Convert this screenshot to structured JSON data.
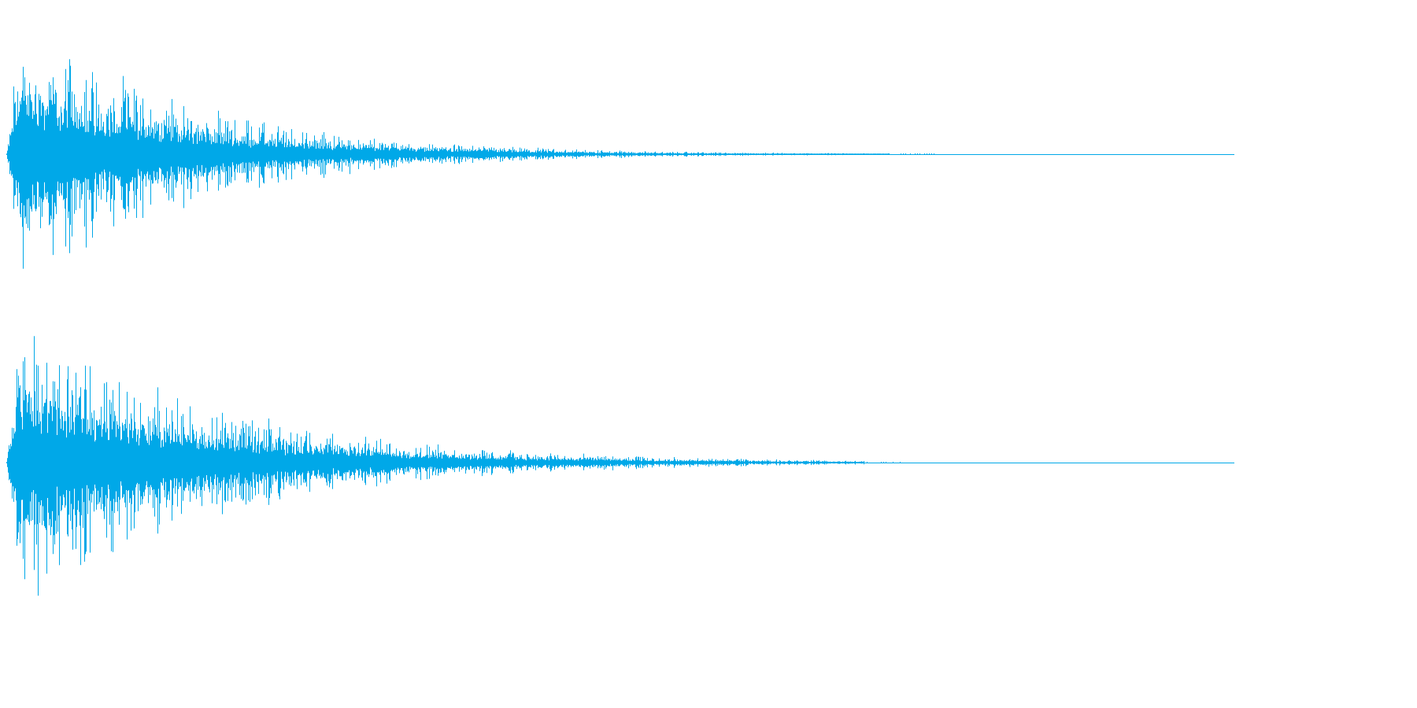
{
  "waveform": {
    "color": "#00a8e8",
    "background": "#ffffff",
    "channel_count": 2,
    "channels": [
      {
        "id": "channel-1",
        "peak_amplitude": 0.98,
        "decay_rate": 4.6,
        "silence_after_fraction": 0.72
      },
      {
        "id": "channel-2",
        "peak_amplitude": 0.95,
        "decay_rate": 3.9,
        "silence_after_fraction": 0.7
      }
    ]
  }
}
